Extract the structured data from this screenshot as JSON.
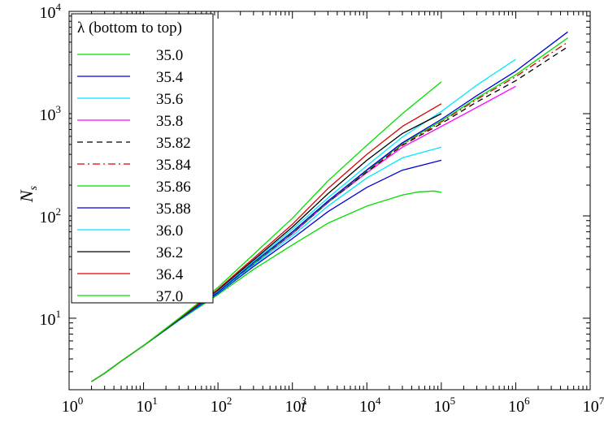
{
  "chart_data": {
    "type": "line",
    "xlabel": "t",
    "ylabel": "N",
    "ylabel_sub": "s",
    "x_scale": "log",
    "y_scale": "log",
    "xlim": [
      1,
      10000000
    ],
    "ylim": [
      2,
      10000
    ],
    "x_ticks": [
      {
        "value": 1,
        "base": "10",
        "exp": "0"
      },
      {
        "value": 10,
        "base": "10",
        "exp": "1"
      },
      {
        "value": 100,
        "base": "10",
        "exp": "2"
      },
      {
        "value": 1000,
        "base": "10",
        "exp": "3"
      },
      {
        "value": 10000,
        "base": "10",
        "exp": "4"
      },
      {
        "value": 100000,
        "base": "10",
        "exp": "5"
      },
      {
        "value": 1000000,
        "base": "10",
        "exp": "6"
      },
      {
        "value": 10000000,
        "base": "10",
        "exp": "7"
      }
    ],
    "y_ticks": [
      {
        "value": 10,
        "base": "10",
        "exp": "1"
      },
      {
        "value": 100,
        "base": "10",
        "exp": "2"
      },
      {
        "value": 1000,
        "base": "10",
        "exp": "3"
      },
      {
        "value": 10000,
        "base": "10",
        "exp": "4"
      }
    ],
    "legend": {
      "title": "λ (bottom to top)",
      "placement": "top-left"
    },
    "series": [
      {
        "name": "35.0",
        "color": "#00e000",
        "dash": "solid",
        "points": [
          [
            2,
            2.4
          ],
          [
            3,
            2.9
          ],
          [
            5,
            3.8
          ],
          [
            10,
            5.4
          ],
          [
            30,
            9.5
          ],
          [
            100,
            17
          ],
          [
            300,
            30
          ],
          [
            1000,
            52
          ],
          [
            3000,
            85
          ],
          [
            10000,
            125
          ],
          [
            30000,
            160
          ],
          [
            50000,
            172
          ],
          [
            80000,
            175
          ],
          [
            100000,
            170
          ]
        ]
      },
      {
        "name": "35.4",
        "color": "#0000dd",
        "dash": "solid",
        "points": [
          [
            2,
            2.4
          ],
          [
            3,
            2.9
          ],
          [
            5,
            3.8
          ],
          [
            10,
            5.4
          ],
          [
            30,
            9.6
          ],
          [
            100,
            17.5
          ],
          [
            300,
            32
          ],
          [
            1000,
            60
          ],
          [
            3000,
            110
          ],
          [
            10000,
            190
          ],
          [
            30000,
            280
          ],
          [
            100000,
            350
          ]
        ]
      },
      {
        "name": "35.6",
        "color": "#00e8ff",
        "dash": "solid",
        "points": [
          [
            2,
            2.4
          ],
          [
            3,
            2.9
          ],
          [
            5,
            3.8
          ],
          [
            10,
            5.4
          ],
          [
            30,
            9.6
          ],
          [
            100,
            17.8
          ],
          [
            300,
            33
          ],
          [
            1000,
            64
          ],
          [
            3000,
            125
          ],
          [
            10000,
            235
          ],
          [
            30000,
            370
          ],
          [
            100000,
            470
          ]
        ]
      },
      {
        "name": "35.8",
        "color": "#ff00ff",
        "dash": "solid",
        "points": [
          [
            2,
            2.4
          ],
          [
            3,
            2.9
          ],
          [
            5,
            3.8
          ],
          [
            10,
            5.4
          ],
          [
            30,
            9.7
          ],
          [
            100,
            18
          ],
          [
            300,
            34
          ],
          [
            1000,
            67
          ],
          [
            3000,
            135
          ],
          [
            10000,
            265
          ],
          [
            30000,
            470
          ],
          [
            100000,
            750
          ],
          [
            300000,
            1150
          ],
          [
            1000000,
            1850
          ]
        ]
      },
      {
        "name": "35.82",
        "color": "#000000",
        "dash": "7,5",
        "points": [
          [
            2,
            2.4
          ],
          [
            3,
            2.9
          ],
          [
            5,
            3.8
          ],
          [
            10,
            5.4
          ],
          [
            30,
            9.7
          ],
          [
            100,
            18
          ],
          [
            300,
            34
          ],
          [
            1000,
            68
          ],
          [
            3000,
            136
          ],
          [
            10000,
            270
          ],
          [
            30000,
            490
          ],
          [
            100000,
            800
          ],
          [
            300000,
            1300
          ],
          [
            1000000,
            2100
          ],
          [
            5000000,
            4500
          ]
        ]
      },
      {
        "name": "35.84",
        "color": "#dd0000",
        "dash": "9,4,2,4",
        "points": [
          [
            2,
            2.4
          ],
          [
            3,
            2.9
          ],
          [
            5,
            3.8
          ],
          [
            10,
            5.4
          ],
          [
            30,
            9.7
          ],
          [
            100,
            18
          ],
          [
            300,
            34.5
          ],
          [
            1000,
            69
          ],
          [
            3000,
            138
          ],
          [
            10000,
            275
          ],
          [
            30000,
            500
          ],
          [
            100000,
            830
          ],
          [
            300000,
            1380
          ],
          [
            1000000,
            2300
          ],
          [
            5000000,
            5000
          ]
        ]
      },
      {
        "name": "35.86",
        "color": "#00e000",
        "dash": "solid",
        "points": [
          [
            2,
            2.4
          ],
          [
            3,
            2.9
          ],
          [
            5,
            3.8
          ],
          [
            10,
            5.4
          ],
          [
            30,
            9.7
          ],
          [
            100,
            18
          ],
          [
            300,
            34.5
          ],
          [
            1000,
            69
          ],
          [
            3000,
            138
          ],
          [
            10000,
            278
          ],
          [
            30000,
            510
          ],
          [
            100000,
            850
          ],
          [
            300000,
            1420
          ],
          [
            1000000,
            2400
          ],
          [
            5000000,
            5500
          ]
        ]
      },
      {
        "name": "35.88",
        "color": "#0000dd",
        "dash": "solid",
        "points": [
          [
            2,
            2.4
          ],
          [
            3,
            2.9
          ],
          [
            5,
            3.8
          ],
          [
            10,
            5.4
          ],
          [
            30,
            9.7
          ],
          [
            100,
            18
          ],
          [
            300,
            35
          ],
          [
            1000,
            70
          ],
          [
            3000,
            140
          ],
          [
            10000,
            282
          ],
          [
            30000,
            520
          ],
          [
            100000,
            880
          ],
          [
            300000,
            1500
          ],
          [
            1000000,
            2600
          ],
          [
            5000000,
            6300
          ]
        ]
      },
      {
        "name": "36.0",
        "color": "#00e8ff",
        "dash": "solid",
        "points": [
          [
            2,
            2.4
          ],
          [
            3,
            2.9
          ],
          [
            5,
            3.8
          ],
          [
            10,
            5.4
          ],
          [
            30,
            9.8
          ],
          [
            100,
            18.5
          ],
          [
            300,
            36
          ],
          [
            1000,
            74
          ],
          [
            3000,
            150
          ],
          [
            10000,
            310
          ],
          [
            30000,
            590
          ],
          [
            100000,
            1050
          ],
          [
            300000,
            1900
          ],
          [
            1000000,
            3400
          ]
        ]
      },
      {
        "name": "36.2",
        "color": "#000000",
        "dash": "solid",
        "points": [
          [
            2,
            2.4
          ],
          [
            3,
            2.9
          ],
          [
            5,
            3.8
          ],
          [
            10,
            5.4
          ],
          [
            30,
            9.8
          ],
          [
            100,
            18.8
          ],
          [
            300,
            37
          ],
          [
            1000,
            78
          ],
          [
            3000,
            165
          ],
          [
            10000,
            350
          ],
          [
            30000,
            640
          ],
          [
            100000,
            1000
          ]
        ]
      },
      {
        "name": "36.4",
        "color": "#dd0000",
        "dash": "solid",
        "points": [
          [
            2,
            2.4
          ],
          [
            3,
            2.9
          ],
          [
            5,
            3.8
          ],
          [
            10,
            5.4
          ],
          [
            30,
            9.9
          ],
          [
            100,
            19.2
          ],
          [
            300,
            38.5
          ],
          [
            1000,
            83
          ],
          [
            3000,
            185
          ],
          [
            10000,
            400
          ],
          [
            30000,
            750
          ],
          [
            100000,
            1250
          ]
        ]
      },
      {
        "name": "37.0",
        "color": "#00e000",
        "dash": "solid",
        "points": [
          [
            2,
            2.4
          ],
          [
            3,
            2.9
          ],
          [
            5,
            3.8
          ],
          [
            10,
            5.4
          ],
          [
            30,
            10
          ],
          [
            100,
            20
          ],
          [
            300,
            42
          ],
          [
            1000,
            95
          ],
          [
            3000,
            220
          ],
          [
            10000,
            490
          ],
          [
            30000,
            1000
          ],
          [
            100000,
            2050
          ]
        ]
      }
    ]
  }
}
